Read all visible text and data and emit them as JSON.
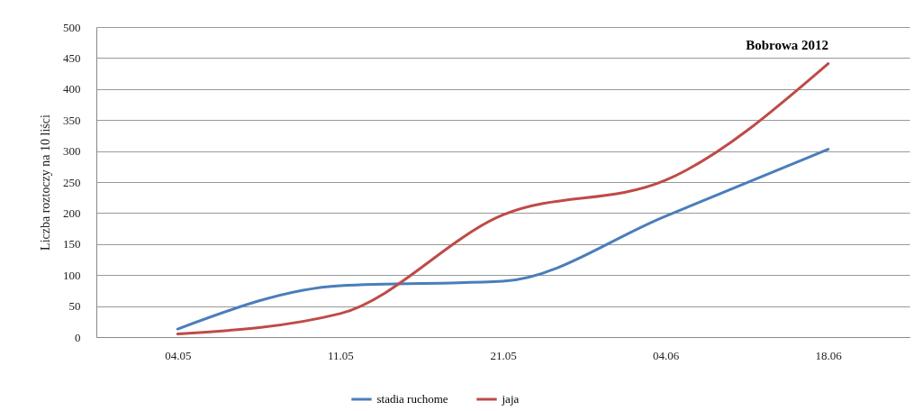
{
  "chart_data": {
    "type": "line",
    "title": "Bobrowa 2012",
    "ylabel": "Liczba roztoczy na 10 liści",
    "categories": [
      "04.05",
      "11.05",
      "21.05",
      "04.06",
      "18.06"
    ],
    "series": [
      {
        "name": "stadia ruchome",
        "color": "#4a7ebb",
        "values": [
          13,
          83,
          90,
          195,
          303
        ]
      },
      {
        "name": "jaja",
        "color": "#be4b48",
        "values": [
          5,
          38,
          197,
          253,
          441
        ]
      }
    ],
    "ylim": [
      0,
      500
    ],
    "yticks": [
      0,
      50,
      100,
      150,
      200,
      250,
      300,
      350,
      400,
      450,
      500
    ],
    "grid": "y",
    "legend": "bottom",
    "marker": "none",
    "line_style": "solid"
  }
}
